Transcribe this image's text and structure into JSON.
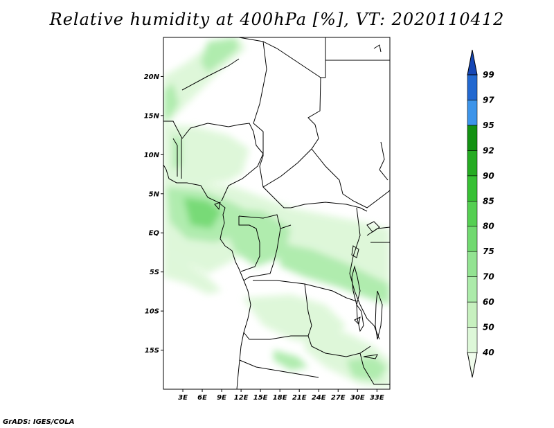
{
  "title": "Relative humidity at 400hPa [%], VT: 2020110412",
  "credit": "GrADS: IGES/COLA",
  "chart_data": {
    "type": "heatmap",
    "title": "Relative humidity at 400hPa [%], VT: 2020110412",
    "xlabel": "",
    "ylabel": "",
    "xlim": [
      0,
      35
    ],
    "ylim": [
      -20,
      25
    ],
    "x_ticks": [
      "3E",
      "6E",
      "9E",
      "12E",
      "15E",
      "18E",
      "21E",
      "24E",
      "27E",
      "30E",
      "33E"
    ],
    "y_ticks": [
      "20N",
      "15N",
      "10N",
      "5N",
      "EQ",
      "5S",
      "10S",
      "15S"
    ],
    "colorbar": {
      "levels": [
        "40",
        "50",
        "60",
        "70",
        "75",
        "80",
        "85",
        "90",
        "92",
        "95",
        "97",
        "99"
      ],
      "colors": [
        "#f0fcec",
        "#ddf7d8",
        "#c7f0bf",
        "#acebaa",
        "#93e392",
        "#71d970",
        "#55cf52",
        "#37c034",
        "#25ab22",
        "#139112",
        "#3d94e9",
        "#2268d0",
        "#1546b5"
      ],
      "extend": "both"
    }
  },
  "colors": {
    "shade_light": "#ddf7d8",
    "shade_mid": "#acebaa",
    "shade_dark": "#71d970",
    "border": "#000000"
  }
}
